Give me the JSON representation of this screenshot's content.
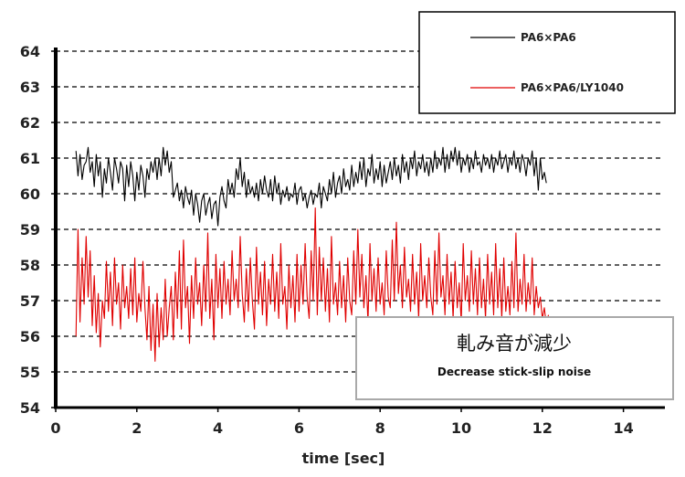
{
  "chart_data": {
    "type": "line",
    "title": "",
    "xlabel": "time [sec]",
    "ylabel": "",
    "xlim": [
      0,
      15
    ],
    "ylim": [
      54,
      64
    ],
    "x_ticks": [
      "0",
      "2",
      "4",
      "6",
      "8",
      "10",
      "12",
      "14"
    ],
    "y_ticks": [
      "54",
      "55",
      "56",
      "57",
      "58",
      "59",
      "60",
      "61",
      "62",
      "63",
      "64"
    ],
    "grid": "horizontal-dashed",
    "legend_position": "top-right",
    "series": [
      {
        "name": "PA6×PA6",
        "color": "#000000",
        "x_start": 0.5,
        "x_step": 0.05,
        "values": [
          61.2,
          60.5,
          61.1,
          60.4,
          60.8,
          60.9,
          61.3,
          60.6,
          60.9,
          60.2,
          61.1,
          60.5,
          60.9,
          59.9,
          60.7,
          60.3,
          61.0,
          60.6,
          60.1,
          61.0,
          60.7,
          60.3,
          60.9,
          60.7,
          59.8,
          60.8,
          60.2,
          60.9,
          60.5,
          59.8,
          60.6,
          60.1,
          60.8,
          60.5,
          59.9,
          60.7,
          60.4,
          60.9,
          60.6,
          61.0,
          60.4,
          61.0,
          60.5,
          61.3,
          60.8,
          61.2,
          60.6,
          60.9,
          59.9,
          60.1,
          60.3,
          59.8,
          60.1,
          59.6,
          60.2,
          59.9,
          59.7,
          60.1,
          59.4,
          60.0,
          59.7,
          59.2,
          59.8,
          60.0,
          59.4,
          59.7,
          59.9,
          59.3,
          59.7,
          59.8,
          59.1,
          59.9,
          60.2,
          59.8,
          59.6,
          60.4,
          60.0,
          60.3,
          59.9,
          60.7,
          60.4,
          61.0,
          60.2,
          60.6,
          59.9,
          60.4,
          60.0,
          60.2,
          59.9,
          60.3,
          59.8,
          60.4,
          60.0,
          60.5,
          60.1,
          59.9,
          60.4,
          59.8,
          60.5,
          60.0,
          60.3,
          59.7,
          60.1,
          59.9,
          60.2,
          59.8,
          60.0,
          59.9,
          60.3,
          59.7,
          60.1,
          60.2,
          59.8,
          60.0,
          59.6,
          59.9,
          60.1,
          59.7,
          60.0,
          59.9,
          60.3,
          59.6,
          60.2,
          60.0,
          59.8,
          60.4,
          60.0,
          60.6,
          59.9,
          60.3,
          60.5,
          60.0,
          60.7,
          60.2,
          60.4,
          60.1,
          60.8,
          60.2,
          60.6,
          60.3,
          60.9,
          60.4,
          61.0,
          60.2,
          60.7,
          60.5,
          61.1,
          60.3,
          60.7,
          60.4,
          60.9,
          60.2,
          60.8,
          60.3,
          60.6,
          60.9,
          60.4,
          61.0,
          60.5,
          60.8,
          60.3,
          61.1,
          60.6,
          60.9,
          60.4,
          61.0,
          60.7,
          61.2,
          60.5,
          60.9,
          60.7,
          61.1,
          60.6,
          60.9,
          60.5,
          61.0,
          60.6,
          61.2,
          60.7,
          61.0,
          60.8,
          61.3,
          60.6,
          61.1,
          60.7,
          61.2,
          60.9,
          61.3,
          60.8,
          61.2,
          60.6,
          61.0,
          60.8,
          61.1,
          60.6,
          61.0,
          60.7,
          61.2,
          60.8,
          60.9,
          60.6,
          61.1,
          60.8,
          61.0,
          60.7,
          61.1,
          60.6,
          61.0,
          60.8,
          61.2,
          60.7,
          60.9,
          61.1,
          60.6,
          61.0,
          60.8,
          61.2,
          60.7,
          61.0,
          60.6,
          61.1,
          60.9,
          60.5,
          61.0,
          60.8,
          61.2,
          60.5,
          61.0,
          60.1,
          61.0,
          60.4,
          60.6,
          60.3
        ]
      },
      {
        "name": "PA6×PA6/LY1040",
        "color": "#e00000",
        "x_start": 0.5,
        "x_step": 0.05,
        "values": [
          56.0,
          59.0,
          56.4,
          58.2,
          56.9,
          58.8,
          57.1,
          58.4,
          56.3,
          57.7,
          56.1,
          57.2,
          55.7,
          57.0,
          56.5,
          58.1,
          56.7,
          57.8,
          56.3,
          58.2,
          56.9,
          57.5,
          56.2,
          58.0,
          56.8,
          57.4,
          56.5,
          57.9,
          56.6,
          58.2,
          56.4,
          57.2,
          56.7,
          58.1,
          56.8,
          55.9,
          57.4,
          55.6,
          56.9,
          55.3,
          57.2,
          55.7,
          56.8,
          55.9,
          57.6,
          56.0,
          56.8,
          57.4,
          55.9,
          57.8,
          56.5,
          58.4,
          56.2,
          58.7,
          56.8,
          57.4,
          55.8,
          57.7,
          56.5,
          58.2,
          56.9,
          57.5,
          56.3,
          58.0,
          56.7,
          58.9,
          56.5,
          57.6,
          55.9,
          58.3,
          56.8,
          57.9,
          56.5,
          58.1,
          56.9,
          57.6,
          56.6,
          58.4,
          57.0,
          57.6,
          56.8,
          58.8,
          57.2,
          56.4,
          57.9,
          56.7,
          58.2,
          57.0,
          56.2,
          58.5,
          56.9,
          57.8,
          56.6,
          58.1,
          56.3,
          57.6,
          56.9,
          58.3,
          56.7,
          57.8,
          56.5,
          58.6,
          56.9,
          57.4,
          56.2,
          58.0,
          56.8,
          57.7,
          56.4,
          58.3,
          56.7,
          58.0,
          56.9,
          58.6,
          57.1,
          56.5,
          58.4,
          57.0,
          59.6,
          56.6,
          58.5,
          57.0,
          58.2,
          56.7,
          57.9,
          56.4,
          58.8,
          56.9,
          57.5,
          56.6,
          58.1,
          56.8,
          57.7,
          56.4,
          58.2,
          57.0,
          56.6,
          58.4,
          56.9,
          59.0,
          57.1,
          58.3,
          56.8,
          57.7,
          56.4,
          58.6,
          57.0,
          57.9,
          56.7,
          58.2,
          56.9,
          57.5,
          56.6,
          58.4,
          57.1,
          56.8,
          58.7,
          57.0,
          59.2,
          57.2,
          58.0,
          56.8,
          58.5,
          57.1,
          57.6,
          56.7,
          58.3,
          56.9,
          57.8,
          56.5,
          58.6,
          57.0,
          57.7,
          56.8,
          58.2,
          57.1,
          56.6,
          58.4,
          56.9,
          58.9,
          57.1,
          57.7,
          56.6,
          58.3,
          56.9,
          57.8,
          56.5,
          58.1,
          56.8,
          57.5,
          56.4,
          58.6,
          57.0,
          57.7,
          56.7,
          58.4,
          56.9,
          57.9,
          56.6,
          58.2,
          56.8,
          57.6,
          56.5,
          58.3,
          56.9,
          57.8,
          56.6,
          58.6,
          56.8,
          57.9,
          56.5,
          58.2,
          56.7,
          57.4,
          56.6,
          58.1,
          56.8,
          58.9,
          56.7,
          57.6,
          56.9,
          58.3,
          56.7,
          57.5,
          56.9,
          58.2,
          56.6,
          57.4,
          56.8,
          57.1,
          56.5,
          56.8,
          56.3,
          56.6
        ]
      }
    ],
    "annotation": {
      "title": "軋み音が減少",
      "subtitle": "Decrease stick-slip noise"
    }
  }
}
